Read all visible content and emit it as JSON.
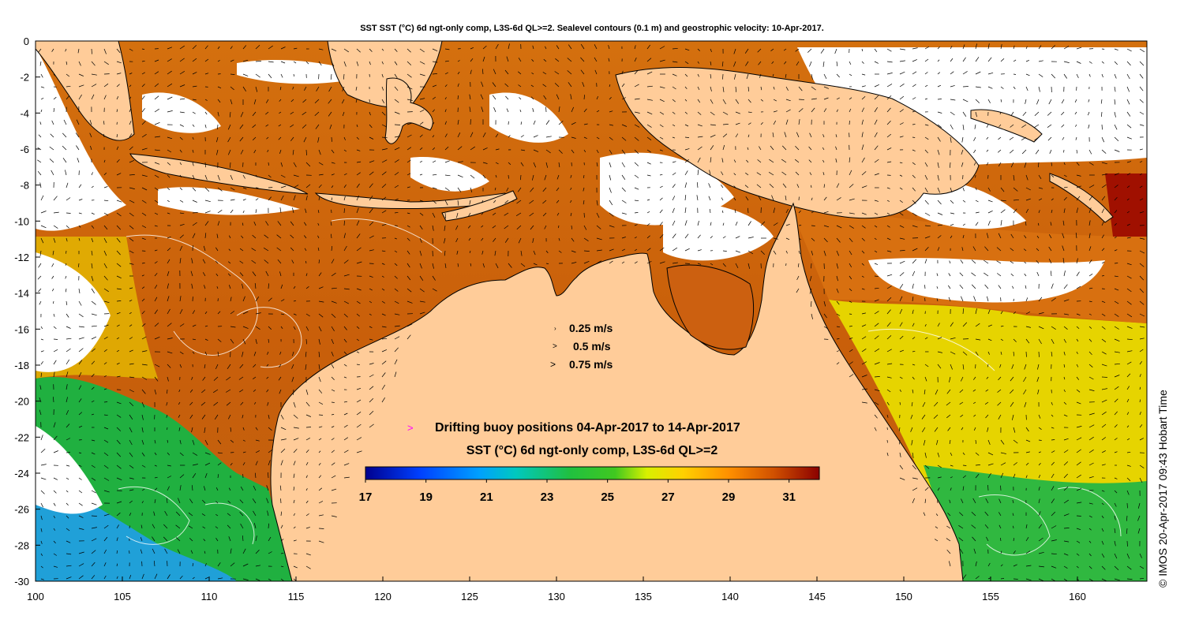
{
  "title": "SST SST (°C) 6d ngt-only comp, L3S-6d QL>=2. Sealevel contours (0.1 m) and geostrophic velocity: 10-Apr-2017.",
  "credit": "© IMOS 20-Apr-2017 09:43 Hobart Time",
  "map": {
    "lon_range": [
      100,
      164
    ],
    "lat_range": [
      -30,
      0
    ],
    "x_ticks": [
      "100",
      "105",
      "110",
      "115",
      "120",
      "125",
      "130",
      "135",
      "140",
      "145",
      "150",
      "155",
      "160"
    ],
    "y_ticks": [
      "0",
      "-2",
      "-4",
      "-6",
      "-8",
      "-10",
      "-12",
      "-14",
      "-16",
      "-18",
      "-20",
      "-22",
      "-24",
      "-26",
      "-28",
      "-30"
    ],
    "land_color": "#ffcc99",
    "no_data_color": "#ffffff"
  },
  "velocity_legend": {
    "items": [
      "0.25 m/s",
      "0.5 m/s",
      "0.75 m/s"
    ],
    "arrow_color": "#000000"
  },
  "buoy_legend": {
    "marker": ">",
    "marker_color": "#ff00ff",
    "label": "Drifting buoy positions 04-Apr-2017 to 14-Apr-2017"
  },
  "colorbar": {
    "title": "SST (°C) 6d ngt-only comp, L3S-6d QL>=2",
    "range": [
      17,
      32
    ],
    "tick_labels": [
      "17",
      "19",
      "21",
      "23",
      "25",
      "27",
      "29",
      "31"
    ]
  }
}
